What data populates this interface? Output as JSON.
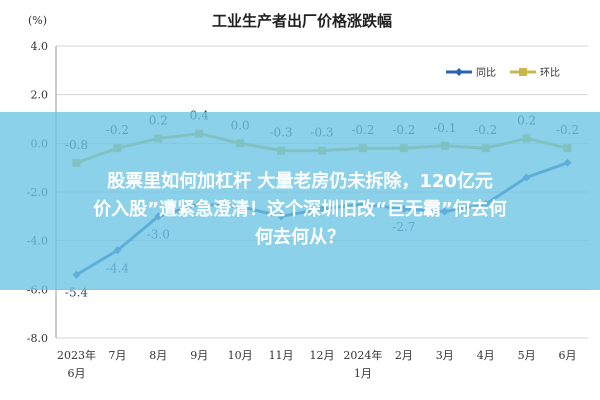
{
  "chart_data": {
    "type": "line",
    "title": "工业生产者出厂价格涨跌幅",
    "unit_label": "(%)",
    "categories": [
      "2023年\n6月",
      "7月",
      "8月",
      "9月",
      "10月",
      "11月",
      "12月",
      "2024年\n1月",
      "2月",
      "3月",
      "4月",
      "5月",
      "6月"
    ],
    "series": [
      {
        "name": "同比",
        "color": "#2a64b0",
        "values": [
          -5.4,
          -4.4,
          -3.0,
          -2.5,
          -2.6,
          -3.0,
          -2.7,
          -2.5,
          -2.7,
          -2.8,
          -2.5,
          -1.4,
          -0.8
        ],
        "labels": [
          "-5.4",
          "-4.4",
          "-3.0",
          "",
          "",
          "",
          "",
          "",
          "-2.7",
          "",
          "",
          "",
          ""
        ]
      },
      {
        "name": "环比",
        "color": "#c8b84a",
        "values": [
          -0.8,
          -0.2,
          0.2,
          0.4,
          0.0,
          -0.3,
          -0.3,
          -0.2,
          -0.2,
          -0.1,
          -0.2,
          0.2,
          -0.2
        ],
        "labels": [
          "-0.8",
          "-0.2",
          "0.2",
          "0.4",
          "0.0",
          "-0.3",
          "-0.3",
          "-0.2",
          "-0.2",
          "-0.1",
          "-0.2",
          "0.2",
          "-0.2"
        ]
      }
    ],
    "yticks": [
      "4.0",
      "2.0",
      "0.0",
      "-2.0",
      "-4.0",
      "-6.0",
      "-8.0"
    ],
    "ylim": [
      -8,
      4
    ],
    "grid": true,
    "legend_position": "top-right"
  },
  "overlay": {
    "line1": "股票里如何加杠杆 大量老房仍未拆除，120亿元",
    "line2": "价入股”遭紧急澄清！这个深圳旧改“巨无霸”何去何",
    "line3": "何去何从？"
  }
}
